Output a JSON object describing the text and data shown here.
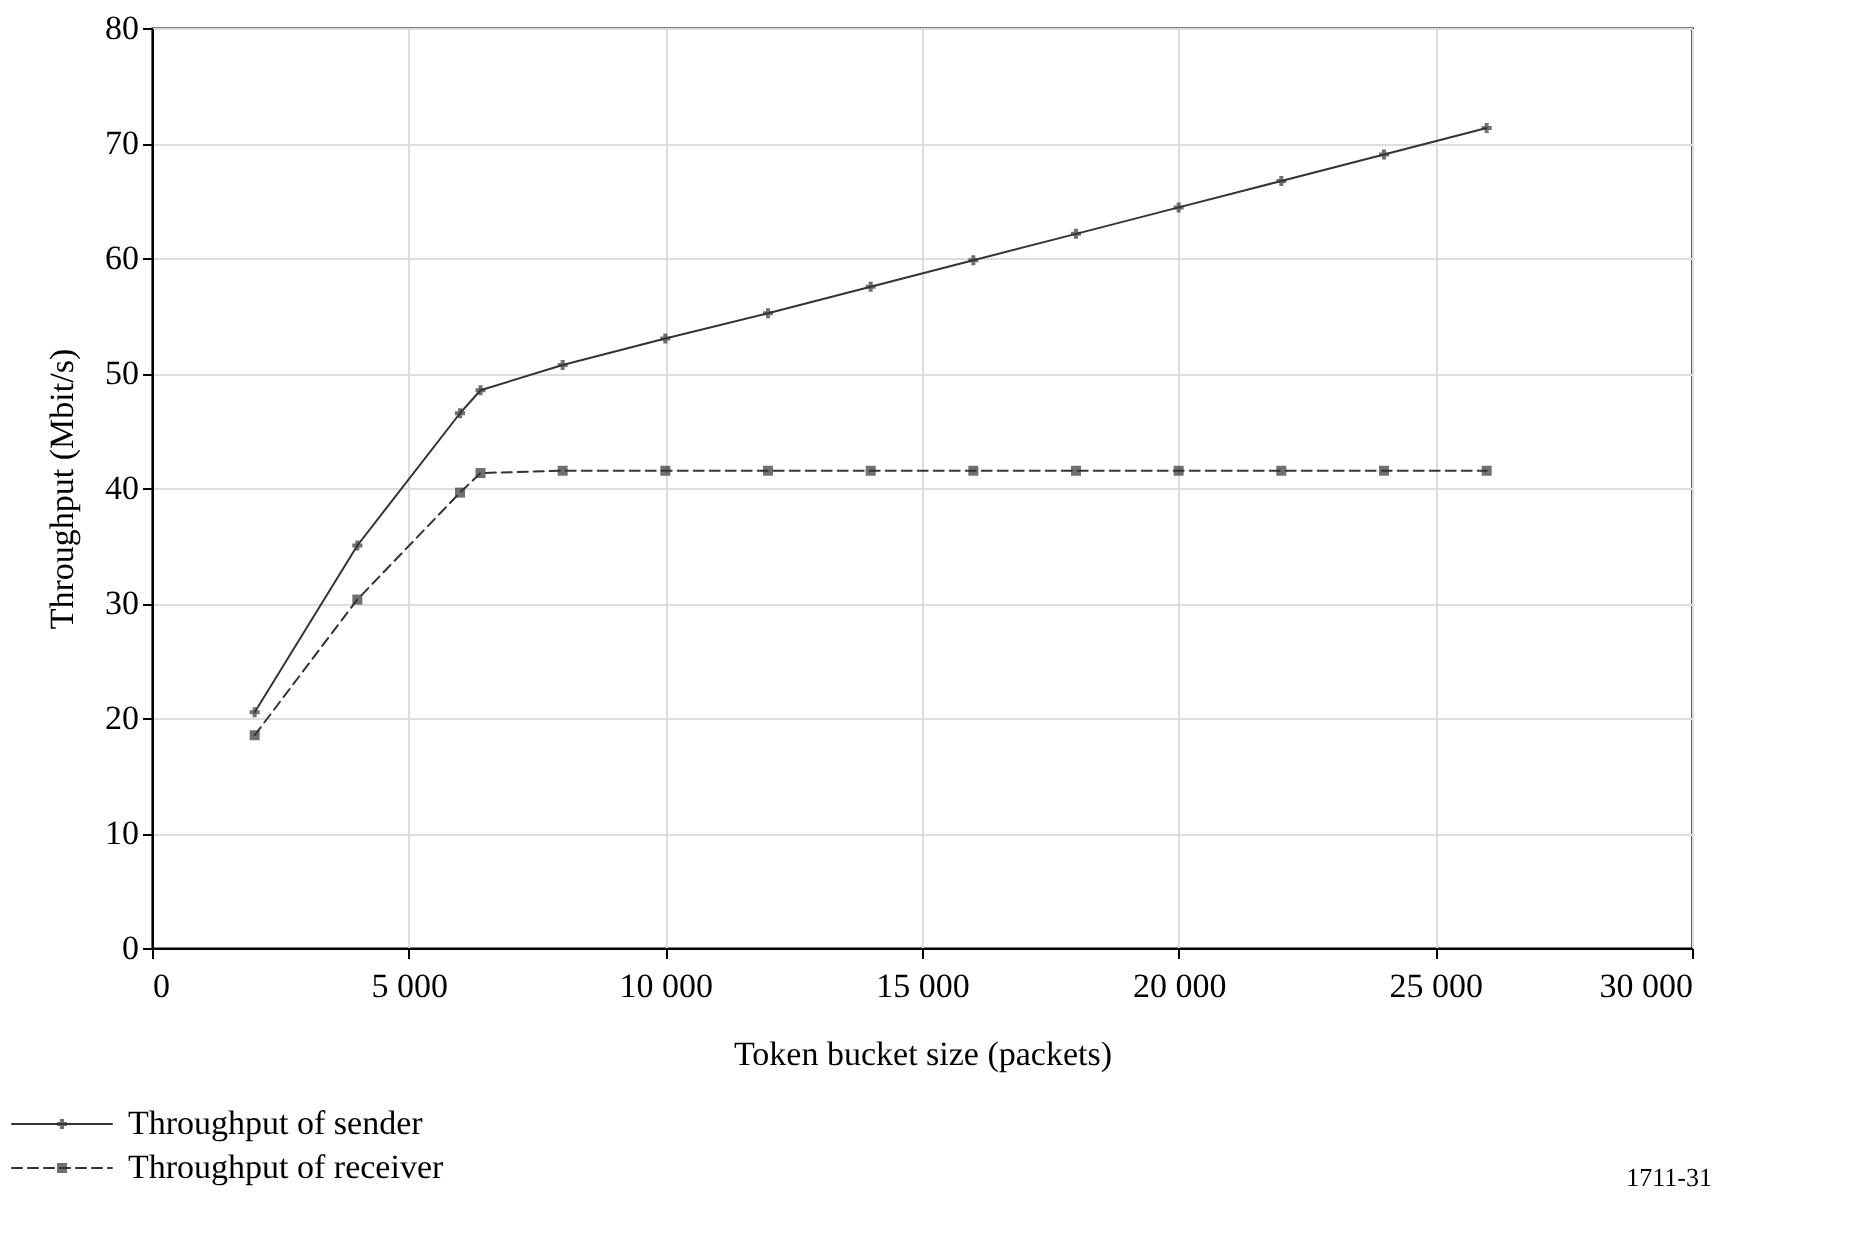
{
  "chart_data": {
    "type": "line",
    "xlabel": "Token bucket size (packets)",
    "ylabel": "Throughput (Mbit/s)",
    "xlim": [
      0,
      30000
    ],
    "xticks": [
      {
        "value": 0,
        "label": "0"
      },
      {
        "value": 5000,
        "label": "5 000"
      },
      {
        "value": 10000,
        "label": "10 000"
      },
      {
        "value": 15000,
        "label": "15 000"
      },
      {
        "value": 20000,
        "label": "20 000"
      },
      {
        "value": 25000,
        "label": "25 000"
      },
      {
        "value": 30000,
        "label": "30 000"
      }
    ],
    "ylim": [
      0,
      80
    ],
    "yticks": [
      0,
      10,
      20,
      30,
      40,
      50,
      60,
      70,
      80
    ],
    "grid": true,
    "legend": "bottom left",
    "annotations": [
      "1711-31"
    ],
    "series": [
      {
        "name": "Throughput of sender",
        "color": "#333333",
        "line_style": "solid",
        "marker": "cross",
        "x": [
          2000,
          4000,
          6000,
          6400,
          8000,
          10000,
          12000,
          14000,
          16000,
          18000,
          20000,
          22000,
          24000,
          26000
        ],
        "values": [
          20.5,
          35,
          46.5,
          48.5,
          50.7,
          53,
          55.2,
          57.5,
          59.8,
          62.1,
          64.4,
          66.7,
          69,
          71.3
        ]
      },
      {
        "name": "Throughput of receiver",
        "color": "#333333",
        "line_style": "dashed",
        "marker": "square",
        "x": [
          2000,
          4000,
          6000,
          6400,
          8000,
          10000,
          12000,
          14000,
          16000,
          18000,
          20000,
          22000,
          24000,
          26000
        ],
        "values": [
          18.5,
          30.3,
          39.6,
          41.3,
          41.5,
          41.5,
          41.5,
          41.5,
          41.5,
          41.5,
          41.5,
          41.5,
          41.5,
          41.5
        ]
      }
    ]
  }
}
